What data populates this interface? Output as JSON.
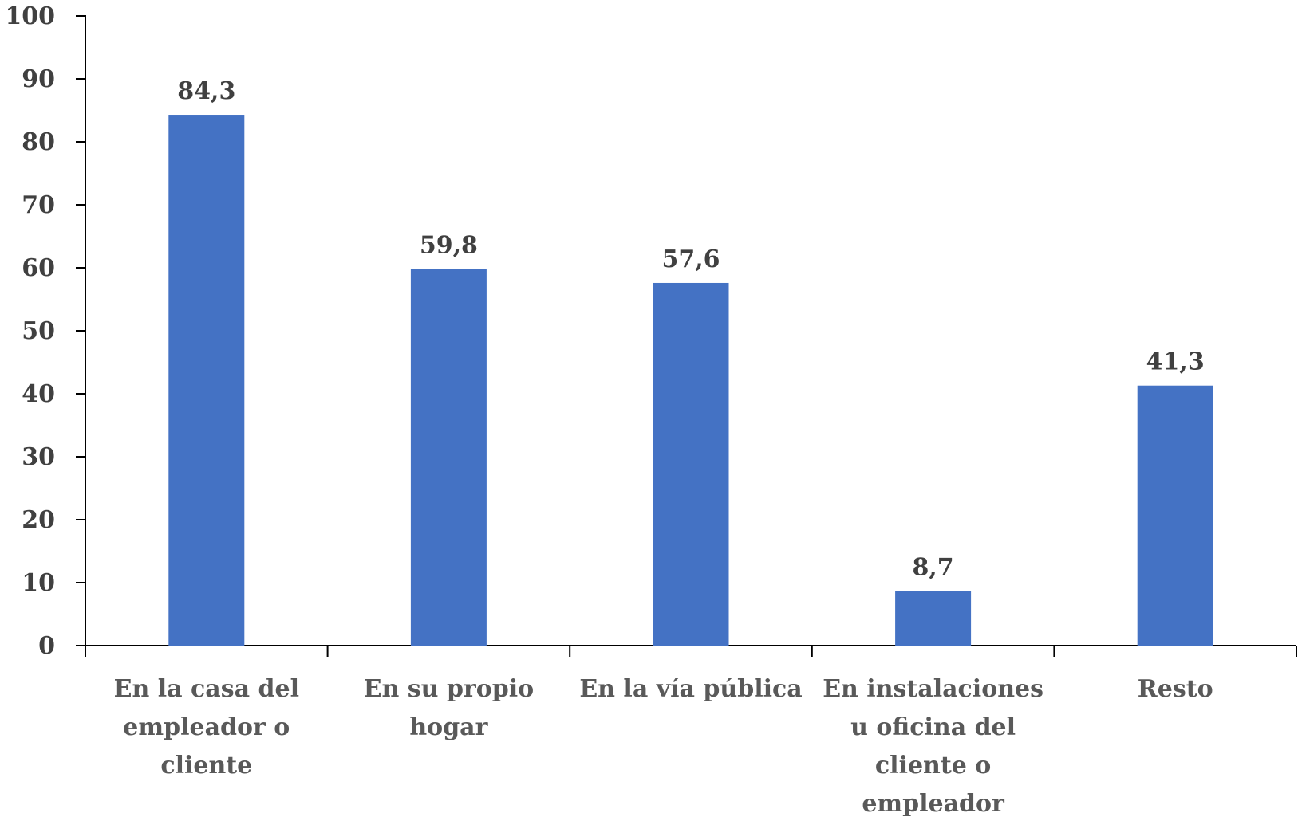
{
  "chart_data": {
    "type": "bar",
    "categories": [
      [
        "En la casa del",
        "empleador o",
        "cliente"
      ],
      [
        "En su propio",
        "hogar"
      ],
      [
        "En la vía pública"
      ],
      [
        "En instalaciones",
        "u oficina del",
        "cliente o",
        "empleador"
      ],
      [
        "Resto"
      ]
    ],
    "values": [
      84.3,
      59.8,
      57.6,
      8.7,
      41.3
    ],
    "value_labels": [
      "84,3",
      "59,8",
      "57,6",
      "8,7",
      "41,3"
    ],
    "title": "",
    "xlabel": "",
    "ylabel": "",
    "ylim": [
      0,
      100
    ],
    "yticks": [
      "0",
      "10",
      "20",
      "30",
      "40",
      "50",
      "60",
      "70",
      "80",
      "90",
      "100"
    ],
    "bar_color": "#4472C4",
    "grid": false,
    "legend": "none"
  }
}
